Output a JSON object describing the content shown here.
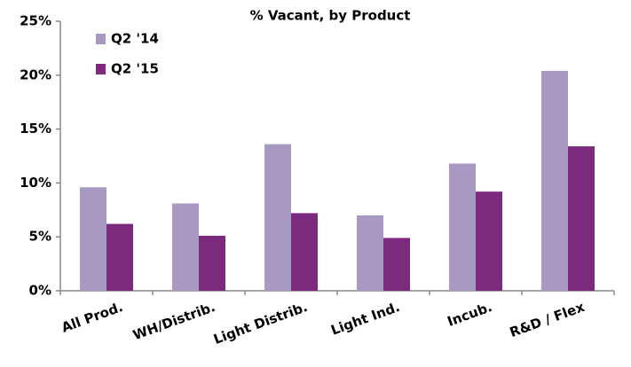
{
  "chart_data": {
    "type": "bar",
    "title": "% Vacant, by Product",
    "categories": [
      "All Prod.",
      "WH/Distrib.",
      "Light Distrib.",
      "Light Ind.",
      "Incub.",
      "R&D / Flex"
    ],
    "series": [
      {
        "name": "Q2 '14",
        "color": "#a899c2",
        "values": [
          9.6,
          8.1,
          13.6,
          7.0,
          11.8,
          20.4
        ]
      },
      {
        "name": "Q2 '15",
        "color": "#7b2a7e",
        "values": [
          6.2,
          5.1,
          7.2,
          4.9,
          9.2,
          13.4
        ]
      }
    ],
    "ylim": [
      0,
      25
    ],
    "yticks": [
      {
        "value": 0,
        "label": "0%"
      },
      {
        "value": 5,
        "label": "5%"
      },
      {
        "value": 10,
        "label": "10%"
      },
      {
        "value": 15,
        "label": "15%"
      },
      {
        "value": 20,
        "label": "20%"
      },
      {
        "value": 25,
        "label": "25%"
      }
    ],
    "legend": "top-left"
  }
}
